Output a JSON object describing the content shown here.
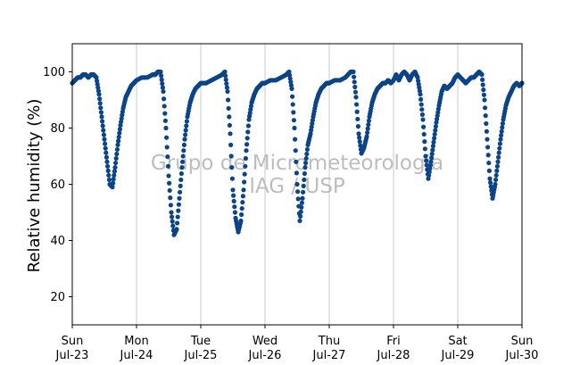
{
  "chart_data": {
    "type": "scatter",
    "ylabel": "Relative humidity (%)",
    "xlabel": "",
    "ylim": [
      10,
      110
    ],
    "xlim": [
      "2023-07-23T00:00",
      "2023-07-30T00:00"
    ],
    "yticks": [
      20,
      40,
      60,
      80,
      100
    ],
    "xticks": [
      {
        "at": "2023-07-23T00:00",
        "day": "Sun",
        "date": "Jul-23"
      },
      {
        "at": "2023-07-24T00:00",
        "day": "Mon",
        "date": "Jul-24"
      },
      {
        "at": "2023-07-25T00:00",
        "day": "Tue",
        "date": "Jul-25"
      },
      {
        "at": "2023-07-26T00:00",
        "day": "Wed",
        "date": "Jul-26"
      },
      {
        "at": "2023-07-27T00:00",
        "day": "Thu",
        "date": "Jul-27"
      },
      {
        "at": "2023-07-28T00:00",
        "day": "Fri",
        "date": "Jul-28"
      },
      {
        "at": "2023-07-29T00:00",
        "day": "Sat",
        "date": "Jul-29"
      },
      {
        "at": "2023-07-30T00:00",
        "day": "Sun",
        "date": "Jul-30"
      }
    ],
    "grid": "vertical",
    "watermark": [
      "Grupo de Micrometeorologia",
      "IAG / USP"
    ],
    "marker_color": "#0b4487",
    "series": [
      {
        "points": [
          [
            "2023-07-23T00:00",
            96
          ],
          [
            "2023-07-23T01:00",
            97
          ],
          [
            "2023-07-23T02:00",
            98
          ],
          [
            "2023-07-23T03:00",
            98
          ],
          [
            "2023-07-23T04:00",
            99
          ],
          [
            "2023-07-23T05:00",
            99
          ],
          [
            "2023-07-23T06:00",
            98
          ],
          [
            "2023-07-23T07:00",
            99
          ],
          [
            "2023-07-23T08:00",
            99
          ],
          [
            "2023-07-23T09:00",
            98
          ],
          [
            "2023-07-23T10:00",
            92
          ],
          [
            "2023-07-23T11:00",
            84
          ],
          [
            "2023-07-23T12:00",
            76
          ],
          [
            "2023-07-23T13:00",
            68
          ],
          [
            "2023-07-23T14:00",
            60
          ],
          [
            "2023-07-23T15:00",
            59
          ],
          [
            "2023-07-23T16:00",
            66
          ],
          [
            "2023-07-23T17:00",
            74
          ],
          [
            "2023-07-23T18:00",
            81
          ],
          [
            "2023-07-23T19:00",
            87
          ],
          [
            "2023-07-23T20:00",
            91
          ],
          [
            "2023-07-23T21:00",
            93
          ],
          [
            "2023-07-23T22:00",
            95
          ],
          [
            "2023-07-23T23:00",
            96
          ],
          [
            "2023-07-24T00:00",
            97
          ],
          [
            "2023-07-24T02:00",
            98
          ],
          [
            "2023-07-24T04:00",
            98
          ],
          [
            "2023-07-24T06:00",
            99
          ],
          [
            "2023-07-24T07:00",
            99
          ],
          [
            "2023-07-24T08:00",
            100
          ],
          [
            "2023-07-24T09:00",
            100
          ],
          [
            "2023-07-24T10:00",
            93
          ],
          [
            "2023-07-24T11:00",
            80
          ],
          [
            "2023-07-24T12:00",
            63
          ],
          [
            "2023-07-24T13:00",
            50
          ],
          [
            "2023-07-24T14:00",
            42
          ],
          [
            "2023-07-24T15:00",
            44
          ],
          [
            "2023-07-24T16:00",
            55
          ],
          [
            "2023-07-24T17:00",
            66
          ],
          [
            "2023-07-24T18:00",
            76
          ],
          [
            "2023-07-24T19:00",
            84
          ],
          [
            "2023-07-24T20:00",
            89
          ],
          [
            "2023-07-24T21:00",
            92
          ],
          [
            "2023-07-24T22:00",
            94
          ],
          [
            "2023-07-24T23:00",
            95
          ],
          [
            "2023-07-25T00:00",
            96
          ],
          [
            "2023-07-25T02:00",
            96
          ],
          [
            "2023-07-25T04:00",
            97
          ],
          [
            "2023-07-25T06:00",
            98
          ],
          [
            "2023-07-25T08:00",
            99
          ],
          [
            "2023-07-25T09:00",
            100
          ],
          [
            "2023-07-25T10:00",
            93
          ],
          [
            "2023-07-25T11:00",
            78
          ],
          [
            "2023-07-25T12:00",
            58
          ],
          [
            "2023-07-25T13:00",
            48
          ],
          [
            "2023-07-25T14:00",
            43
          ],
          [
            "2023-07-25T15:00",
            47
          ],
          [
            "2023-07-25T16:00",
            58
          ],
          [
            "2023-07-25T17:00",
            72
          ],
          [
            "2023-07-25T18:00",
            83
          ],
          [
            "2023-07-25T19:00",
            89
          ],
          [
            "2023-07-25T20:00",
            92
          ],
          [
            "2023-07-25T21:00",
            94
          ],
          [
            "2023-07-25T22:00",
            95
          ],
          [
            "2023-07-25T23:00",
            96
          ],
          [
            "2023-07-26T00:00",
            96
          ],
          [
            "2023-07-26T02:00",
            97
          ],
          [
            "2023-07-26T04:00",
            97
          ],
          [
            "2023-07-26T06:00",
            98
          ],
          [
            "2023-07-26T08:00",
            99
          ],
          [
            "2023-07-26T09:00",
            100
          ],
          [
            "2023-07-26T10:00",
            94
          ],
          [
            "2023-07-26T11:00",
            80
          ],
          [
            "2023-07-26T12:00",
            60
          ],
          [
            "2023-07-26T13:00",
            47
          ],
          [
            "2023-07-26T14:00",
            55
          ],
          [
            "2023-07-26T15:00",
            66
          ],
          [
            "2023-07-26T16:00",
            74
          ],
          [
            "2023-07-26T17:00",
            78
          ],
          [
            "2023-07-26T18:00",
            84
          ],
          [
            "2023-07-26T19:00",
            89
          ],
          [
            "2023-07-26T20:00",
            92
          ],
          [
            "2023-07-26T21:00",
            94
          ],
          [
            "2023-07-26T22:00",
            95
          ],
          [
            "2023-07-26T23:00",
            96
          ],
          [
            "2023-07-27T00:00",
            96
          ],
          [
            "2023-07-27T02:00",
            97
          ],
          [
            "2023-07-27T04:00",
            97
          ],
          [
            "2023-07-27T06:00",
            98
          ],
          [
            "2023-07-27T08:00",
            100
          ],
          [
            "2023-07-27T09:00",
            100
          ],
          [
            "2023-07-27T10:00",
            91
          ],
          [
            "2023-07-27T11:00",
            78
          ],
          [
            "2023-07-27T12:00",
            71
          ],
          [
            "2023-07-27T13:00",
            73
          ],
          [
            "2023-07-27T14:00",
            77
          ],
          [
            "2023-07-27T15:00",
            84
          ],
          [
            "2023-07-27T16:00",
            89
          ],
          [
            "2023-07-27T17:00",
            92
          ],
          [
            "2023-07-27T18:00",
            94
          ],
          [
            "2023-07-27T19:00",
            95
          ],
          [
            "2023-07-27T20:00",
            96
          ],
          [
            "2023-07-27T21:00",
            96
          ],
          [
            "2023-07-27T22:00",
            97
          ],
          [
            "2023-07-27T23:00",
            96
          ],
          [
            "2023-07-28T00:00",
            97
          ],
          [
            "2023-07-28T01:00",
            99
          ],
          [
            "2023-07-28T02:00",
            97
          ],
          [
            "2023-07-28T03:00",
            99
          ],
          [
            "2023-07-28T04:00",
            100
          ],
          [
            "2023-07-28T05:00",
            99
          ],
          [
            "2023-07-28T06:00",
            97
          ],
          [
            "2023-07-28T07:00",
            99
          ],
          [
            "2023-07-28T08:00",
            100
          ],
          [
            "2023-07-28T09:00",
            98
          ],
          [
            "2023-07-28T10:00",
            92
          ],
          [
            "2023-07-28T11:00",
            83
          ],
          [
            "2023-07-28T12:00",
            70
          ],
          [
            "2023-07-28T13:00",
            62
          ],
          [
            "2023-07-28T14:00",
            68
          ],
          [
            "2023-07-28T15:00",
            75
          ],
          [
            "2023-07-28T16:00",
            82
          ],
          [
            "2023-07-28T17:00",
            88
          ],
          [
            "2023-07-28T18:00",
            93
          ],
          [
            "2023-07-28T19:00",
            95
          ],
          [
            "2023-07-28T20:00",
            94
          ],
          [
            "2023-07-28T21:00",
            95
          ],
          [
            "2023-07-28T22:00",
            96
          ],
          [
            "2023-07-28T23:00",
            98
          ],
          [
            "2023-07-29T00:00",
            99
          ],
          [
            "2023-07-29T01:00",
            98
          ],
          [
            "2023-07-29T02:00",
            97
          ],
          [
            "2023-07-29T03:00",
            96
          ],
          [
            "2023-07-29T04:00",
            97
          ],
          [
            "2023-07-29T05:00",
            98
          ],
          [
            "2023-07-29T06:00",
            98
          ],
          [
            "2023-07-29T07:00",
            99
          ],
          [
            "2023-07-29T08:00",
            100
          ],
          [
            "2023-07-29T09:00",
            99
          ],
          [
            "2023-07-29T10:00",
            90
          ],
          [
            "2023-07-29T11:00",
            76
          ],
          [
            "2023-07-29T12:00",
            62
          ],
          [
            "2023-07-29T13:00",
            55
          ],
          [
            "2023-07-29T14:00",
            60
          ],
          [
            "2023-07-29T15:00",
            68
          ],
          [
            "2023-07-29T16:00",
            76
          ],
          [
            "2023-07-29T17:00",
            83
          ],
          [
            "2023-07-29T18:00",
            88
          ],
          [
            "2023-07-29T19:00",
            91
          ],
          [
            "2023-07-29T20:00",
            93
          ],
          [
            "2023-07-29T21:00",
            95
          ],
          [
            "2023-07-29T22:00",
            96
          ],
          [
            "2023-07-29T23:00",
            95
          ],
          [
            "2023-07-30T00:00",
            96
          ]
        ]
      }
    ]
  }
}
